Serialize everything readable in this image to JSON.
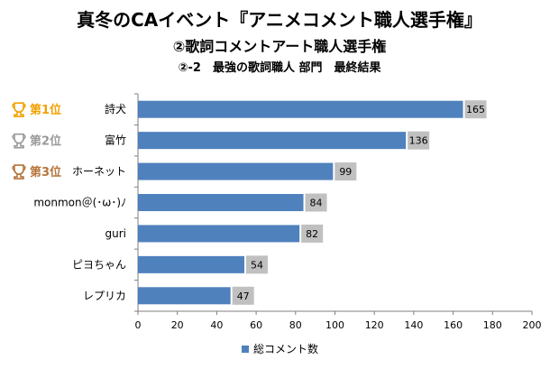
{
  "header": {
    "title": "真冬のCAイベント『アニメコメント職人選手権』",
    "subtitle": "②歌詞コメントアート職人選手権",
    "section": "②-2　最強の歌詞職人 部門　最終結果"
  },
  "ranks": [
    {
      "label": "第1位",
      "color": "#f2a100"
    },
    {
      "label": "第2位",
      "color": "#9a9a9a"
    },
    {
      "label": "第3位",
      "color": "#b5743b"
    }
  ],
  "chart_data": {
    "type": "bar",
    "orientation": "horizontal",
    "categories": [
      "詩犬",
      "富竹",
      "ホーネット",
      "monmon＠(･ω･)ﾉ",
      "guri",
      "ピヨちゃん",
      "レプリカ"
    ],
    "series": [
      {
        "name": "総コメント数",
        "values": [
          165,
          136,
          99,
          84,
          82,
          54,
          47
        ],
        "color": "#4f81bd"
      }
    ],
    "x_ticks": [
      0,
      20,
      40,
      60,
      80,
      100,
      120,
      140,
      160,
      180,
      200
    ],
    "xlim": [
      0,
      200
    ],
    "grid": false,
    "legend_position": "bottom"
  }
}
